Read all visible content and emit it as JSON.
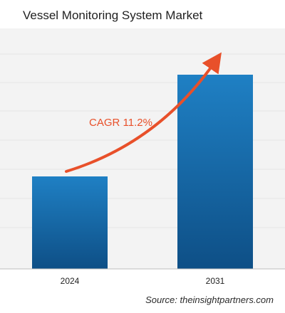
{
  "title": "Vessel Monitoring System Market",
  "source": "Source: theinsightpartners.com",
  "colors": {
    "bar_top": "#1f80c4",
    "bar_bottom": "#0e4f86",
    "arrow": "#e8502a",
    "cagr_text": "#e8502a",
    "grid": "#e6e6e6",
    "axis": "#bdbdbd",
    "band": "#f3f3f3"
  },
  "chart_data": {
    "type": "bar",
    "categories": [
      "2024",
      "2031"
    ],
    "values": [
      1.0,
      2.1
    ],
    "ylim": [
      0,
      2.6
    ],
    "grid": true,
    "annotation": {
      "text": "CAGR 11.2%",
      "type": "arrow",
      "from": "2024",
      "to": "2031"
    }
  }
}
